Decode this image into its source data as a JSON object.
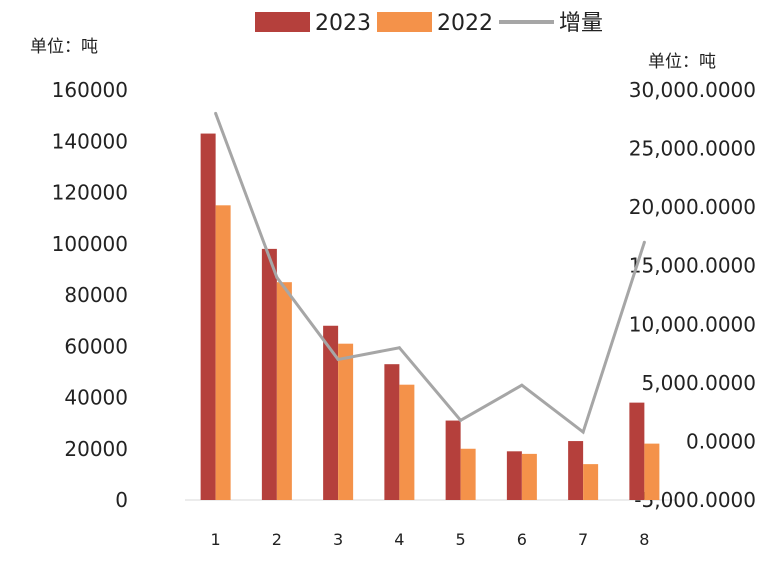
{
  "chart_data": {
    "type": "bar",
    "title": "",
    "unit_left": "单位：吨",
    "unit_right": "单位：吨",
    "categories": [
      "1",
      "2",
      "3",
      "4",
      "5",
      "6",
      "7",
      "8"
    ],
    "series": [
      {
        "name": "2023",
        "kind": "bar",
        "axis": "left",
        "color": "#b5403c",
        "values": [
          143000,
          98000,
          68000,
          53000,
          31000,
          19000,
          23000,
          38000
        ]
      },
      {
        "name": "2022",
        "kind": "bar",
        "axis": "left",
        "color": "#f4924a",
        "values": [
          115000,
          85000,
          61000,
          45000,
          20000,
          18000,
          14000,
          22000
        ]
      },
      {
        "name": "增量",
        "kind": "line",
        "axis": "right",
        "color": "#a6a6a6",
        "values": [
          28000,
          14000,
          7000,
          8000,
          1800,
          4800,
          800,
          17000
        ]
      }
    ],
    "y_left": {
      "min": 0,
      "max": 160000,
      "step": 20000,
      "ticks": [
        "0",
        "20000",
        "40000",
        "60000",
        "80000",
        "100000",
        "120000",
        "140000",
        "160000"
      ]
    },
    "y_right": {
      "min": -5000,
      "max": 30000,
      "step": 5000,
      "ticks": [
        "-5,000.0000",
        "0.0000",
        "5,000.0000",
        "10,000.0000",
        "15,000.0000",
        "20,000.0000",
        "25,000.0000",
        "30,000.0000"
      ]
    },
    "legend_position": "top",
    "grid": false
  }
}
